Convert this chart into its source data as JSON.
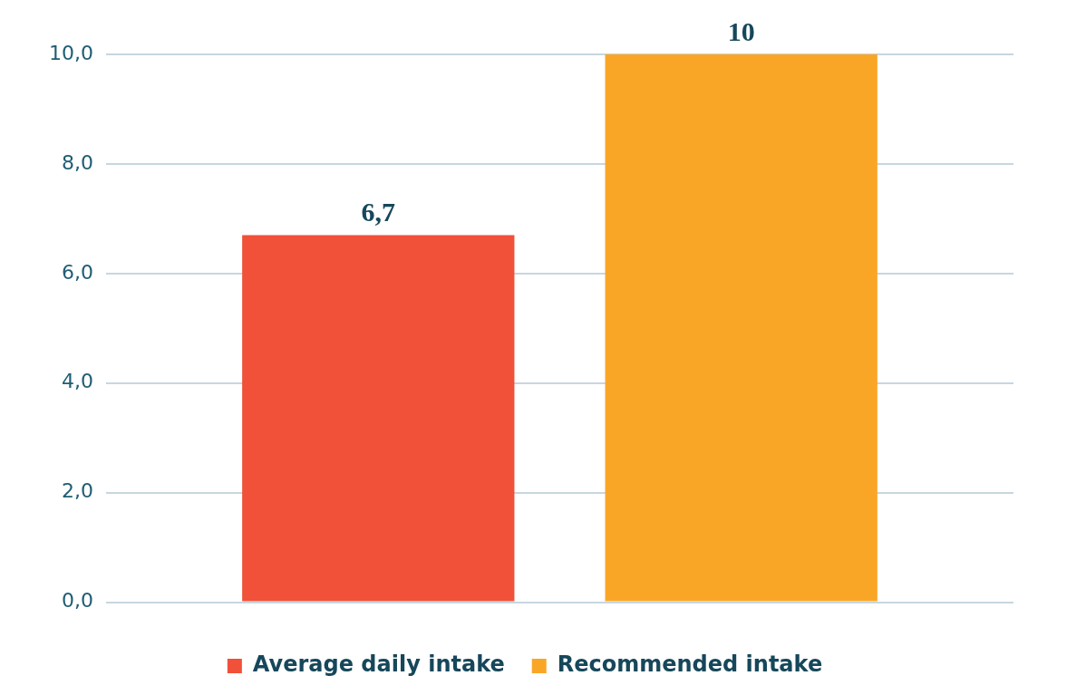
{
  "chart_data": {
    "type": "bar",
    "categories": [
      null
    ],
    "series": [
      {
        "name": "Average daily intake",
        "color": "#f05138",
        "values": [
          6.7
        ],
        "value_labels": [
          "6,7"
        ]
      },
      {
        "name": "Recommended intake",
        "color": "#f9a627",
        "values": [
          10
        ],
        "value_labels": [
          "10"
        ]
      }
    ],
    "ylim": [
      0,
      10
    ],
    "yticks": [
      {
        "value": 0,
        "label": "0,0"
      },
      {
        "value": 2,
        "label": "2,0"
      },
      {
        "value": 4,
        "label": "4,0"
      },
      {
        "value": 6,
        "label": "6,0"
      },
      {
        "value": 8,
        "label": "8,0"
      },
      {
        "value": 10,
        "label": "10,0"
      }
    ],
    "grid": "y",
    "legend": "bottom"
  }
}
